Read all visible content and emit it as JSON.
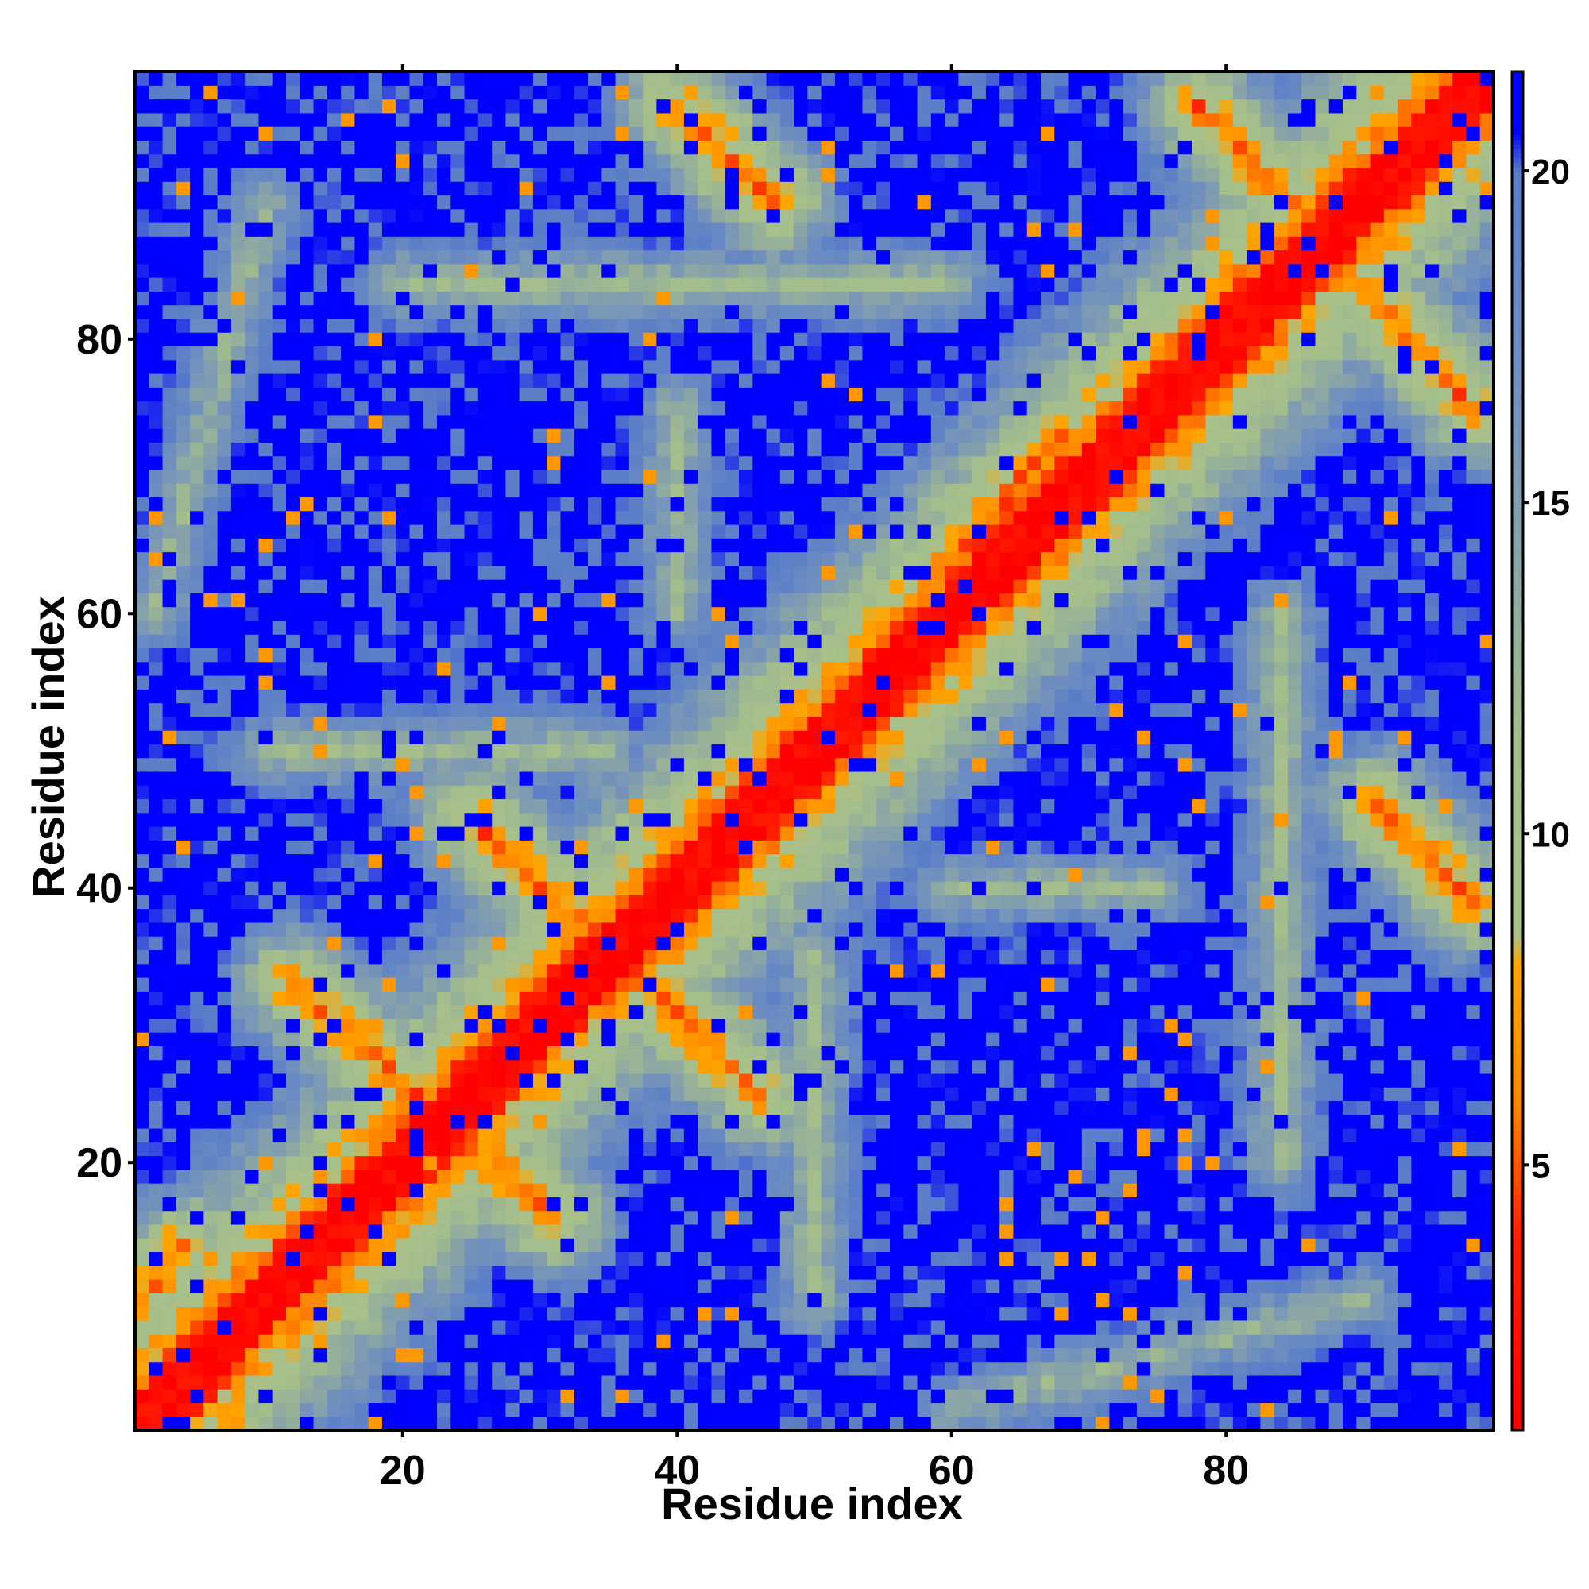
{
  "chart_data": {
    "type": "heatmap",
    "xlabel": "Residue index",
    "ylabel": "Residue index",
    "n_residues": 99,
    "xlim": [
      0.5,
      99.5
    ],
    "ylim": [
      0.5,
      99.5
    ],
    "x_ticks": [
      20,
      40,
      60,
      80
    ],
    "y_ticks": [
      20,
      40,
      60,
      80
    ],
    "colorbar": {
      "range": [
        1,
        21.5
      ],
      "ticks": [
        5,
        10,
        15,
        20
      ],
      "colors": [
        {
          "value": 1.0,
          "color": "#ff0000"
        },
        {
          "value": 4.0,
          "color": "#ff2200"
        },
        {
          "value": 6.0,
          "color": "#ff8800"
        },
        {
          "value": 8.0,
          "color": "#ffa500"
        },
        {
          "value": 8.5,
          "color": "#a9c08a"
        },
        {
          "value": 11.5,
          "color": "#a3bd8c"
        },
        {
          "value": 14.0,
          "color": "#8aa5a6"
        },
        {
          "value": 17.0,
          "color": "#6e8ec0"
        },
        {
          "value": 20.0,
          "color": "#5a7dc8"
        },
        {
          "value": 20.6,
          "color": "#0000ff"
        },
        {
          "value": 21.5,
          "color": "#0000ff"
        }
      ]
    },
    "cap_value": 21,
    "contact_features": [
      {
        "kind": "diagonal",
        "w": 4.5
      },
      {
        "kind": "segment",
        "a": [
          4,
          14
        ],
        "b": [
          1,
          10
        ],
        "w": 2.5,
        "d": 5.5
      },
      {
        "kind": "segment",
        "a": [
          12,
          33
        ],
        "b": [
          31,
          16
        ],
        "w": 3.0,
        "d": 5.5
      },
      {
        "kind": "segment",
        "a": [
          25,
          45
        ],
        "b": [
          46,
          25
        ],
        "w": 3.0,
        "d": 5.5
      },
      {
        "kind": "segment",
        "a": [
          54,
          57
        ],
        "b": [
          68,
          73
        ],
        "w": 3.0,
        "d": 5.0
      },
      {
        "kind": "segment",
        "a": [
          40,
          97
        ],
        "b": [
          47,
          90
        ],
        "w": 2.5,
        "d": 5.5
      },
      {
        "kind": "segment",
        "a": [
          78,
          97
        ],
        "b": [
          98,
          75
        ],
        "w": 3.0,
        "d": 5.5
      },
      {
        "kind": "segment",
        "a": [
          91,
          46
        ],
        "b": [
          98,
          39
        ],
        "w": 2.5,
        "d": 5.5
      },
      {
        "kind": "segment",
        "a": [
          10,
          50
        ],
        "b": [
          35,
          50
        ],
        "w": 5,
        "d": 11.5
      },
      {
        "kind": "segment",
        "a": [
          50,
          10
        ],
        "b": [
          50,
          35
        ],
        "w": 5,
        "d": 11.5
      },
      {
        "kind": "segment",
        "a": [
          84,
          20
        ],
        "b": [
          84,
          60
        ],
        "w": 5,
        "d": 11.5
      },
      {
        "kind": "segment",
        "a": [
          20,
          84
        ],
        "b": [
          60,
          84
        ],
        "w": 5,
        "d": 11.5
      },
      {
        "kind": "segment",
        "a": [
          60,
          40
        ],
        "b": [
          75,
          40
        ],
        "w": 4,
        "d": 12.0
      },
      {
        "kind": "segment",
        "a": [
          40,
          60
        ],
        "b": [
          40,
          75
        ],
        "w": 4,
        "d": 12.0
      },
      {
        "kind": "segment",
        "a": [
          2,
          60
        ],
        "b": [
          10,
          90
        ],
        "w": 4,
        "d": 12.5
      },
      {
        "kind": "segment",
        "a": [
          60,
          2
        ],
        "b": [
          90,
          10
        ],
        "w": 4,
        "d": 12.5
      }
    ]
  }
}
